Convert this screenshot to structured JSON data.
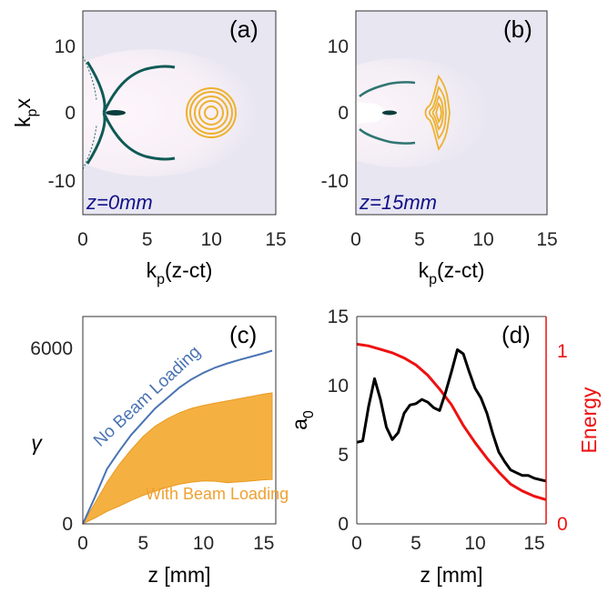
{
  "chart_data": [
    {
      "type": "heatmap",
      "panel_label": "(a)",
      "annotation": "z=0mm",
      "xlabel": "k",
      "xlabel_sub": "p",
      "xlabel_rest": "(z-ct)",
      "ylabel": "k",
      "ylabel_sub": "p",
      "ylabel_rest": "x",
      "xlim": [
        0,
        15
      ],
      "ylim": [
        -15,
        15
      ],
      "xticks": [
        "0",
        "5",
        "10",
        "15"
      ],
      "yticks": [
        "10",
        "0",
        "-10"
      ],
      "contour_center": [
        10,
        0
      ],
      "contour_radii": [
        1.0,
        1.8,
        2.5,
        3.1,
        3.6
      ],
      "colors": {
        "background": "#e8e6f1",
        "bubble": "#fcf6fb",
        "sheath": "#0f5a56",
        "contour": "#edb12f"
      }
    },
    {
      "type": "heatmap",
      "panel_label": "(b)",
      "annotation": "z=15mm",
      "xlabel": "k",
      "xlabel_sub": "p",
      "xlabel_rest": "(z-ct)",
      "xlim": [
        0,
        15
      ],
      "ylim": [
        -15,
        15
      ],
      "xticks": [
        "0",
        "5",
        "10",
        "15"
      ],
      "yticks": [
        "10",
        "0",
        "-10"
      ],
      "contour_center": [
        6.5,
        0
      ],
      "colors": {
        "background": "#e8e6f1",
        "bubble": "#fcf6fb",
        "sheath": "#0f5a56",
        "contour": "#edb12f"
      }
    },
    {
      "type": "line",
      "panel_label": "(c)",
      "xlabel": "z [mm]",
      "ylabel": "γ",
      "xlim": [
        0,
        16
      ],
      "ylim": [
        0,
        7000
      ],
      "xticks": [
        "0",
        "5",
        "10",
        "15"
      ],
      "yticks": [
        "0",
        "6000"
      ],
      "series": [
        {
          "name": "No Beam Loading",
          "color": "#4a73b3",
          "x": [
            0,
            1,
            2,
            3,
            4,
            5,
            6,
            7,
            8,
            9,
            10,
            11,
            12,
            13,
            14,
            15,
            15.7
          ],
          "y": [
            0,
            900,
            1850,
            2450,
            3000,
            3450,
            3900,
            4250,
            4600,
            4880,
            5100,
            5280,
            5420,
            5540,
            5650,
            5760,
            5850
          ]
        },
        {
          "name": "With Beam Loading",
          "color": "#f5b042",
          "x": [
            0,
            1,
            2,
            3,
            4,
            5,
            6,
            7,
            8,
            9,
            10,
            11,
            12,
            13,
            14,
            15,
            15.7
          ],
          "upper": [
            0,
            700,
            1400,
            2000,
            2500,
            2950,
            3300,
            3550,
            3750,
            3900,
            4000,
            4080,
            4150,
            4230,
            4300,
            4380,
            4420
          ],
          "lower": [
            0,
            200,
            420,
            600,
            790,
            960,
            1100,
            1230,
            1340,
            1410,
            1450,
            1440,
            1390,
            1420,
            1450,
            1490,
            1500
          ]
        }
      ]
    },
    {
      "type": "line",
      "panel_label": "(d)",
      "xlabel": "z [mm]",
      "ylabel": "a",
      "ylabel_sub": "0",
      "ylabel_right": "Energy",
      "xlim": [
        0,
        16
      ],
      "ylim": [
        0,
        15
      ],
      "ylim_right": [
        0,
        1.2
      ],
      "xticks": [
        "0",
        "5",
        "10",
        "15"
      ],
      "yticks": [
        "0",
        "5",
        "10",
        "15"
      ],
      "yticks_right": [
        "0",
        "1"
      ],
      "series": [
        {
          "axis": "left",
          "color": "#000000",
          "x": [
            0,
            0.5,
            1.0,
            1.5,
            2.0,
            2.5,
            3.0,
            3.5,
            4.0,
            4.5,
            5.0,
            5.5,
            6.0,
            6.5,
            7.0,
            7.5,
            8.0,
            8.5,
            9.0,
            9.5,
            10.0,
            10.5,
            11.0,
            11.5,
            12.0,
            12.5,
            13.0,
            13.5,
            14.0,
            14.5,
            15.0,
            15.5,
            16.0
          ],
          "y": [
            5.9,
            6.0,
            8.5,
            10.5,
            9.0,
            7.0,
            6.1,
            6.6,
            8.0,
            8.6,
            8.7,
            9.0,
            8.8,
            8.4,
            8.2,
            9.5,
            11.0,
            12.6,
            12.3,
            11.0,
            9.8,
            9.1,
            8.0,
            6.5,
            5.2,
            4.5,
            3.9,
            3.7,
            3.5,
            3.5,
            3.3,
            3.2,
            3.1
          ]
        },
        {
          "axis": "right",
          "color": "#ee1111",
          "x": [
            0,
            1,
            2,
            3,
            4,
            5,
            6,
            7,
            8,
            9,
            10,
            11,
            12,
            13,
            14,
            15,
            16
          ],
          "y": [
            1.04,
            1.03,
            1.01,
            0.99,
            0.96,
            0.92,
            0.86,
            0.78,
            0.69,
            0.57,
            0.47,
            0.38,
            0.3,
            0.23,
            0.19,
            0.16,
            0.14
          ]
        }
      ]
    }
  ]
}
